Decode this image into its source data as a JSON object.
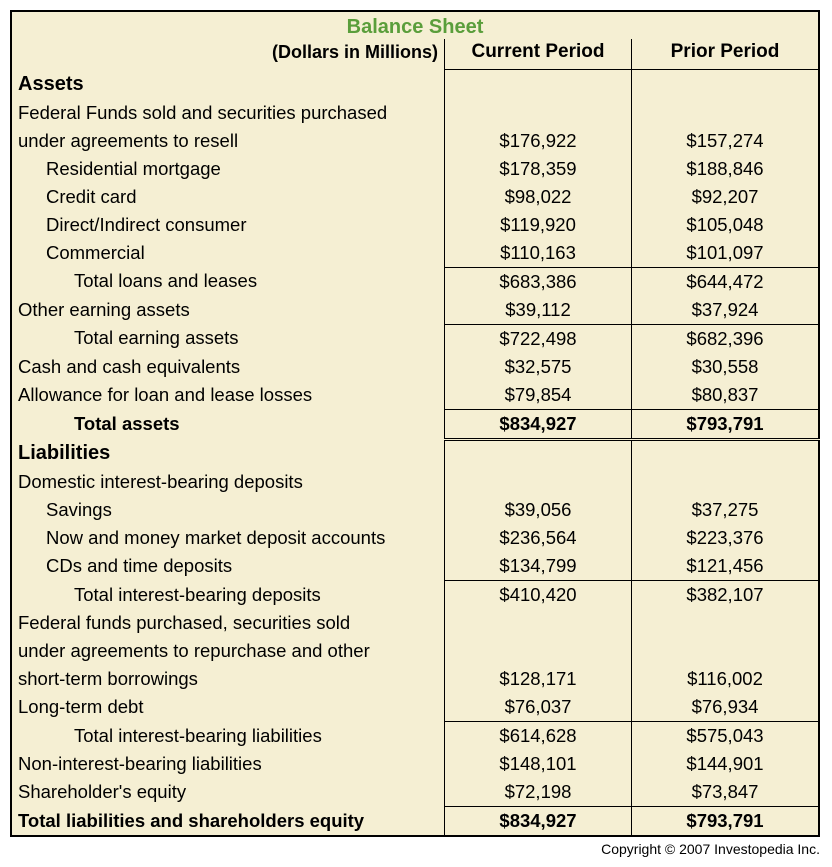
{
  "title": "Balance Sheet",
  "subtitle": "(Dollars in Millions)",
  "column_headers": {
    "current": "Current Period",
    "prior": "Prior Period"
  },
  "sections": {
    "assets_header": "Assets",
    "liabilities_header": "Liabilities"
  },
  "rows": {
    "fed_funds_sold_line1": "Federal Funds sold and securities purchased",
    "fed_funds_sold_line2": "under agreements to resell",
    "fed_funds_sold_cur": "$176,922",
    "fed_funds_sold_pri": "$157,274",
    "res_mortgage": "Residential mortgage",
    "res_mortgage_cur": "$178,359",
    "res_mortgage_pri": "$188,846",
    "credit_card": "Credit card",
    "credit_card_cur": "$98,022",
    "credit_card_pri": "$92,207",
    "direct_indirect": "Direct/Indirect consumer",
    "direct_indirect_cur": "$119,920",
    "direct_indirect_pri": "$105,048",
    "commercial": "Commercial",
    "commercial_cur": "$110,163",
    "commercial_pri": "$101,097",
    "total_loans": "Total loans and leases",
    "total_loans_cur": "$683,386",
    "total_loans_pri": "$644,472",
    "other_earning": "Other earning assets",
    "other_earning_cur": "$39,112",
    "other_earning_pri": "$37,924",
    "total_earning": "Total earning assets",
    "total_earning_cur": "$722,498",
    "total_earning_pri": "$682,396",
    "cash_equiv": "Cash and cash equivalents",
    "cash_equiv_cur": "$32,575",
    "cash_equiv_pri": "$30,558",
    "allowance": "Allowance for loan and lease losses",
    "allowance_cur": "$79,854",
    "allowance_pri": "$80,837",
    "total_assets": "Total assets",
    "total_assets_cur": "$834,927",
    "total_assets_pri": "$793,791",
    "domestic_deposits": "Domestic interest-bearing deposits",
    "savings": "Savings",
    "savings_cur": "$39,056",
    "savings_pri": "$37,275",
    "now_mm": "Now and money market deposit accounts",
    "now_mm_cur": "$236,564",
    "now_mm_pri": "$223,376",
    "cds": "CDs and time deposits",
    "cds_cur": "$134,799",
    "cds_pri": "$121,456",
    "total_ib_deposits": "Total interest-bearing deposits",
    "total_ib_deposits_cur": "$410,420",
    "total_ib_deposits_pri": "$382,107",
    "fed_funds_purch_line1": "Federal funds purchased, securities sold",
    "fed_funds_purch_line2": "under agreements to repurchase and other",
    "fed_funds_purch_line3": "short-term borrowings",
    "fed_funds_purch_cur": "$128,171",
    "fed_funds_purch_pri": "$116,002",
    "long_term_debt": "Long-term debt",
    "long_term_debt_cur": "$76,037",
    "long_term_debt_pri": "$76,934",
    "total_ib_liab": "Total interest-bearing liabilities",
    "total_ib_liab_cur": "$614,628",
    "total_ib_liab_pri": "$575,043",
    "non_ib_liab": "Non-interest-bearing liabilities",
    "non_ib_liab_cur": "$148,101",
    "non_ib_liab_pri": "$144,901",
    "sh_equity": "Shareholder's equity",
    "sh_equity_cur": "$72,198",
    "sh_equity_pri": "$73,847",
    "total_liab_eq": "Total liabilities and shareholders equity",
    "total_liab_eq_cur": "$834,927",
    "total_liab_eq_pri": "$793,791"
  },
  "copyright": "Copyright © 2007 Investopedia Inc."
}
